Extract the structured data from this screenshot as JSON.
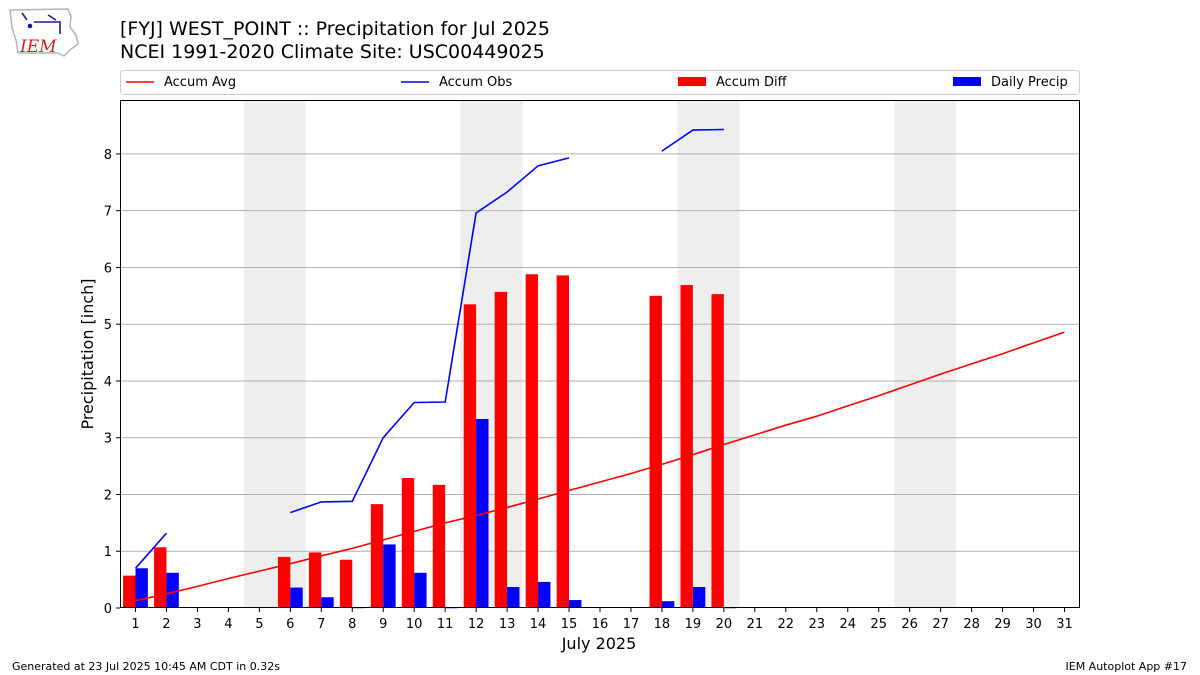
{
  "title": "[FYJ] WEST_POINT :: Precipitation for Jul 2025",
  "subtitle": "NCEI 1991-2020 Climate Site: USC00449025",
  "logo": {
    "text": "IEM",
    "icon": "iowa-state-outline-logo"
  },
  "footer": {
    "left": "Generated at 23 Jul 2025 10:45 AM CDT in 0.32s",
    "right": "IEM Autoplot App #17"
  },
  "colors": {
    "accum_avg": "#ff0000",
    "accum_obs": "#0000ff",
    "accum_diff": "#ff0000",
    "daily_precip": "#0000ff",
    "weekend_shade": "#eeeeee",
    "grid": "#b0b0b0"
  },
  "chart_data": {
    "type": "bar",
    "xlabel": "July 2025",
    "ylabel": "Precipitation [inch]",
    "xlim": [
      0.5,
      31.5
    ],
    "ylim": [
      0,
      8.95
    ],
    "yticks": [
      0,
      1,
      2,
      3,
      4,
      5,
      6,
      7,
      8
    ],
    "grid": "horizontal",
    "legend_position": "top, above plot",
    "weekend_bands": [
      [
        5,
        6
      ],
      [
        12,
        13
      ],
      [
        19,
        20
      ],
      [
        26,
        27
      ]
    ],
    "x": [
      1,
      2,
      3,
      4,
      5,
      6,
      7,
      8,
      9,
      10,
      11,
      12,
      13,
      14,
      15,
      16,
      17,
      18,
      19,
      20,
      21,
      22,
      23,
      24,
      25,
      26,
      27,
      28,
      29,
      30,
      31
    ],
    "series": [
      {
        "name": "Accum Avg",
        "kind": "line",
        "values": [
          0.13,
          0.25,
          0.38,
          0.52,
          0.65,
          0.78,
          0.92,
          1.05,
          1.2,
          1.35,
          1.5,
          1.63,
          1.77,
          1.92,
          2.07,
          2.22,
          2.37,
          2.53,
          2.7,
          2.88,
          3.05,
          3.22,
          3.38,
          3.56,
          3.74,
          3.93,
          4.12,
          4.3,
          4.48,
          4.67,
          4.86
        ]
      },
      {
        "name": "Accum Obs",
        "kind": "line",
        "values": [
          0.7,
          1.32,
          null,
          null,
          null,
          1.68,
          1.87,
          1.88,
          3.0,
          3.62,
          3.63,
          6.96,
          7.33,
          7.79,
          7.93,
          null,
          null,
          8.05,
          8.42,
          8.43,
          null,
          null,
          null,
          null,
          null,
          null,
          null,
          null,
          null,
          null,
          null
        ]
      },
      {
        "name": "Accum Diff",
        "kind": "bar",
        "values": [
          0.57,
          1.07,
          null,
          null,
          null,
          0.9,
          0.98,
          0.85,
          1.83,
          2.29,
          2.17,
          5.35,
          5.57,
          5.88,
          5.86,
          null,
          null,
          5.5,
          5.69,
          5.53,
          null,
          null,
          null,
          null,
          null,
          null,
          null,
          null,
          null,
          null,
          null
        ]
      },
      {
        "name": "Daily Precip",
        "kind": "bar",
        "values": [
          0.7,
          0.62,
          null,
          null,
          null,
          0.36,
          0.19,
          0.01,
          1.12,
          0.62,
          0.01,
          3.33,
          0.37,
          0.46,
          0.14,
          null,
          null,
          0.12,
          0.37,
          0.01,
          null,
          null,
          null,
          null,
          null,
          null,
          null,
          null,
          null,
          null,
          null
        ]
      }
    ]
  }
}
